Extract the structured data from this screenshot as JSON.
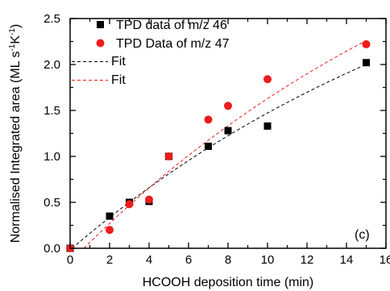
{
  "chart_data": {
    "type": "scatter",
    "title": "",
    "xlabel": "HCOOH deposition time (min)",
    "ylabel_main": "Normalised Integrated area (ML s",
    "ylabel_sup1": "-1",
    "ylabel_mid": "K",
    "ylabel_sup2": "-1",
    "ylabel_end": ")",
    "xlim": [
      0,
      16
    ],
    "ylim": [
      0,
      2.5
    ],
    "xticks": [
      0,
      2,
      4,
      6,
      8,
      10,
      12,
      14,
      16
    ],
    "yticks": [
      0.0,
      0.5,
      1.0,
      1.5,
      2.0,
      2.5
    ],
    "xtick_labels": [
      "0",
      "2",
      "4",
      "6",
      "8",
      "10",
      "12",
      "14",
      "16"
    ],
    "ytick_labels": [
      "0.0",
      "0.5",
      "1.0",
      "1.5",
      "2.0",
      "2.5"
    ],
    "grid": false,
    "legend_position": "top-left",
    "annotation": "(c)",
    "series": [
      {
        "name": "TPD data of m/z 46",
        "marker": "square",
        "color": "#000000",
        "x": [
          0,
          2,
          3,
          4,
          5,
          7,
          8,
          10,
          15
        ],
        "y": [
          0.0,
          0.35,
          0.5,
          0.51,
          1.0,
          1.11,
          1.28,
          1.33,
          2.02
        ]
      },
      {
        "name": "TPD Data of m/z 47",
        "marker": "circle",
        "color": "#ee1c1c",
        "x": [
          0,
          2,
          3,
          4,
          5,
          7,
          8,
          10,
          15
        ],
        "y": [
          0.0,
          0.2,
          0.48,
          0.53,
          1.0,
          1.4,
          1.55,
          1.84,
          2.22
        ]
      }
    ],
    "fits": [
      {
        "name": "Fit",
        "color": "#000000",
        "x0": 0.1,
        "y_at_15": 2.0,
        "curve": "saturating"
      },
      {
        "name": "Fit",
        "color": "#ee1c1c",
        "x0": 0.7,
        "y_at_15": 2.26,
        "curve": "saturating"
      }
    ]
  }
}
